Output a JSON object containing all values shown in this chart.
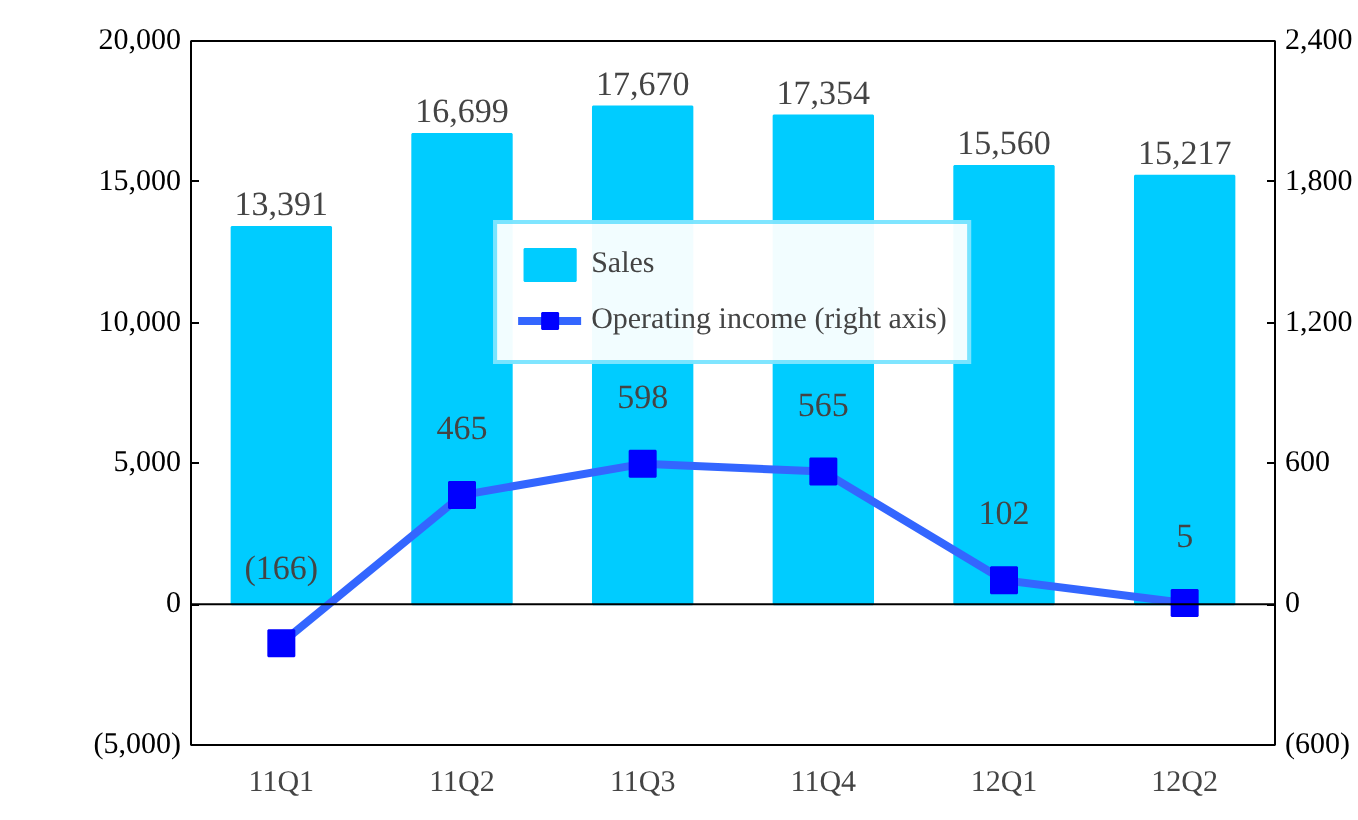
{
  "chart_data": {
    "type": "bar",
    "categories": [
      "11Q1",
      "11Q2",
      "11Q3",
      "11Q4",
      "12Q1",
      "12Q2"
    ],
    "series": [
      {
        "name": "Sales",
        "color": "#00ccff",
        "values": [
          13391,
          16699,
          17670,
          17354,
          15560,
          15217
        ],
        "value_labels": [
          "13,391",
          "16,699",
          "17,670",
          "17,354",
          "15,560",
          "15,217"
        ]
      },
      {
        "name": "Operating income (right axis)",
        "type": "line",
        "axis": "y2",
        "color": "#3366ff",
        "values": [
          -166,
          465,
          598,
          565,
          102,
          5
        ],
        "value_labels": [
          "(166)",
          "465",
          "598",
          "565",
          "102",
          "5"
        ]
      }
    ],
    "ylim": [
      -5000,
      20000
    ],
    "yticks": [
      {
        "value": -5000,
        "label": "(5,000)"
      },
      {
        "value": 0,
        "label": "0"
      },
      {
        "value": 5000,
        "label": "5,000"
      },
      {
        "value": 10000,
        "label": "10,000"
      },
      {
        "value": 15000,
        "label": "15,000"
      },
      {
        "value": 20000,
        "label": "20,000"
      }
    ],
    "y2lim": [
      -600,
      2400
    ],
    "y2ticks": [
      {
        "value": -600,
        "label": "(600)"
      },
      {
        "value": 0,
        "label": "0"
      },
      {
        "value": 600,
        "label": "600"
      },
      {
        "value": 1200,
        "label": "1,200"
      },
      {
        "value": 1800,
        "label": "1,800"
      },
      {
        "value": 2400,
        "label": "2,400"
      }
    ],
    "ref_lines": [
      {
        "axis": "y",
        "value": 0,
        "color": "#000000"
      }
    ],
    "marker": "square",
    "legend": "top",
    "grid": false
  }
}
